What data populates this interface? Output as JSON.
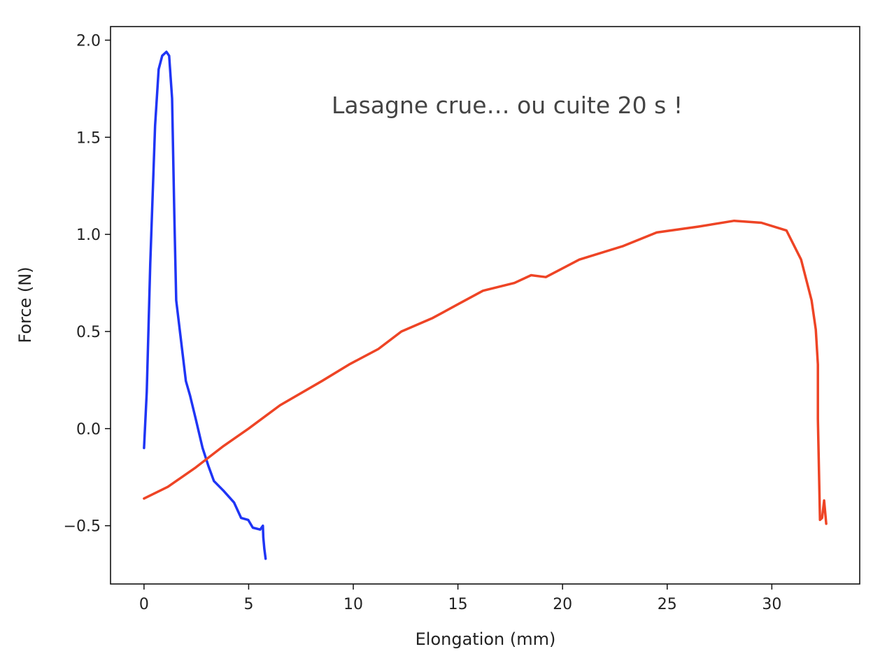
{
  "chart_data": {
    "type": "line",
    "title": "",
    "annotation": "Lasagne crue… ou cuite 20 s !",
    "xlabel": "Elongation (mm)",
    "ylabel": "Force (N)",
    "xlim": [
      -1.6,
      34.2
    ],
    "ylim": [
      -0.8,
      2.07
    ],
    "xticks": [
      0,
      5,
      10,
      15,
      20,
      25,
      30
    ],
    "xtick_labels": [
      "0",
      "5",
      "10",
      "15",
      "20",
      "25",
      "30"
    ],
    "yticks": [
      -0.5,
      0.0,
      0.5,
      1.0,
      1.5,
      2.0
    ],
    "ytick_labels": [
      "−0.5",
      "0.0",
      "0.5",
      "1.0",
      "1.5",
      "2.0"
    ],
    "grid": false,
    "series": [
      {
        "color": "#1f35f5",
        "x": [
          0,
          0.13,
          0.3,
          0.53,
          0.7,
          0.87,
          1.07,
          1.2,
          1.34,
          1.45,
          1.54,
          1.74,
          2.0,
          2.2,
          2.47,
          2.8,
          3.07,
          3.34,
          3.8,
          4.3,
          4.64,
          4.98,
          5.2,
          5.55,
          5.68,
          5.7,
          5.75,
          5.81
        ],
        "y": [
          -0.1,
          0.19,
          0.85,
          1.56,
          1.85,
          1.92,
          1.94,
          1.92,
          1.7,
          1.1,
          0.66,
          0.48,
          0.245,
          0.17,
          0.05,
          -0.1,
          -0.19,
          -0.27,
          -0.32,
          -0.38,
          -0.46,
          -0.47,
          -0.51,
          -0.52,
          -0.5,
          -0.56,
          -0.62,
          -0.67
        ]
      },
      {
        "color": "#ee4425",
        "x": [
          0,
          1.14,
          2.47,
          3.8,
          5,
          6.5,
          8.5,
          9.8,
          11.2,
          12.3,
          13.8,
          15,
          16.2,
          17.7,
          18.5,
          19.2,
          20.8,
          22.9,
          24.5,
          26.5,
          28.2,
          29.5,
          30.7,
          31.4,
          31.9,
          32.1,
          32.2,
          32.2,
          32.3,
          32.4,
          32.5,
          32.6
        ],
        "y": [
          -0.36,
          -0.3,
          -0.2,
          -0.09,
          0.0,
          0.12,
          0.245,
          0.33,
          0.41,
          0.5,
          0.57,
          0.64,
          0.71,
          0.75,
          0.79,
          0.78,
          0.87,
          0.94,
          1.01,
          1.04,
          1.07,
          1.06,
          1.02,
          0.87,
          0.66,
          0.51,
          0.33,
          0.05,
          -0.47,
          -0.46,
          -0.37,
          -0.49
        ]
      }
    ]
  }
}
